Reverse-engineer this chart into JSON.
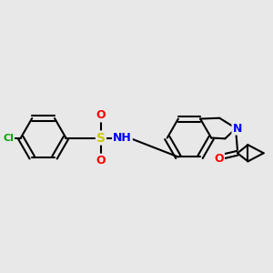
{
  "background_color": "#e8e8e8",
  "bond_color": "#000000",
  "bond_width": 1.5,
  "atom_colors": {
    "Cl": "#00aa00",
    "S": "#cccc00",
    "O": "#ff0000",
    "N": "#0000ff",
    "C": "#000000",
    "H": "#000000"
  },
  "figsize": [
    3.0,
    3.0
  ],
  "dpi": 100
}
